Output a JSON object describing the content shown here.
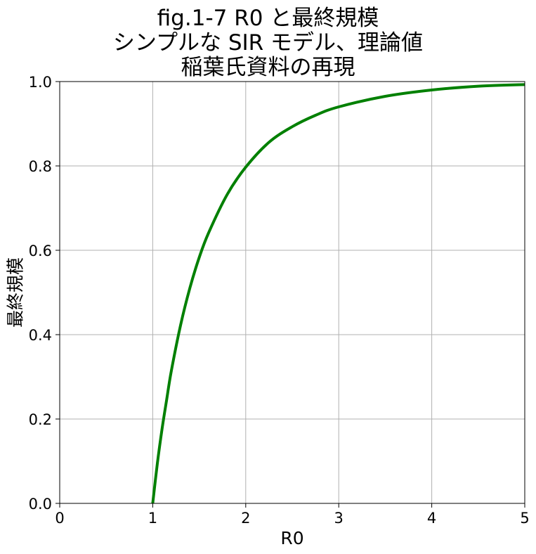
{
  "chart_data": {
    "type": "line",
    "title_lines": [
      "fig.1-7  R0 と最終規模",
      "シンプルな SIR モデル、理論値",
      "稲葉氏資料の再現"
    ],
    "xlabel": "R0",
    "ylabel": "最終規模",
    "xlim": [
      0,
      5
    ],
    "ylim": [
      0,
      1
    ],
    "x_ticks": [
      "0",
      "1",
      "2",
      "3",
      "4",
      "5"
    ],
    "y_ticks": [
      "0.0",
      "0.2",
      "0.4",
      "0.6",
      "0.8",
      "1.0"
    ],
    "grid": true,
    "series": [
      {
        "color": "#008000",
        "x": [
          1.0,
          1.05,
          1.1,
          1.15,
          1.2,
          1.3,
          1.4,
          1.5,
          1.6,
          1.8,
          2.0,
          2.25,
          2.5,
          2.75,
          3.0,
          3.5,
          4.0,
          4.5,
          5.0
        ],
        "y": [
          0.0,
          0.095,
          0.176,
          0.246,
          0.314,
          0.423,
          0.511,
          0.583,
          0.641,
          0.732,
          0.797,
          0.856,
          0.893,
          0.92,
          0.94,
          0.965,
          0.98,
          0.989,
          0.993
        ]
      }
    ]
  }
}
